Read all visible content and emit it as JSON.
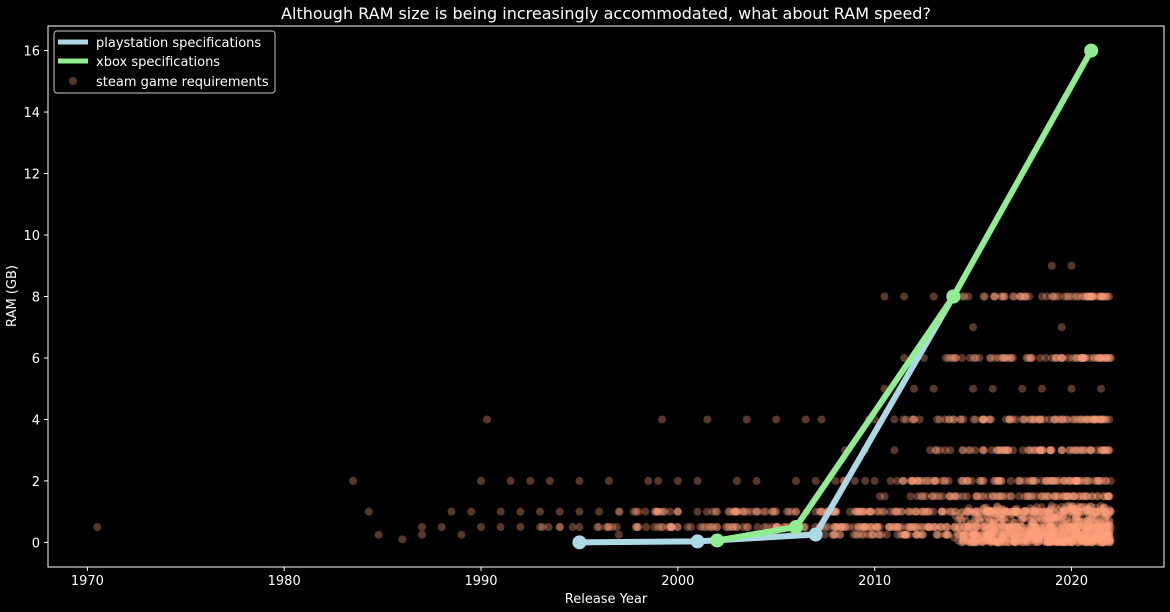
{
  "chart_data": {
    "type": "scatter",
    "title": "Although RAM size is being increasingly accommodated, what about RAM speed?",
    "xlabel": "Release Year",
    "ylabel": "RAM (GB)",
    "xlim": [
      1968,
      2024.7
    ],
    "ylim": [
      -0.8,
      16.8
    ],
    "xticks": [
      1970,
      1980,
      1990,
      2000,
      2010,
      2020
    ],
    "yticks": [
      0,
      2,
      4,
      6,
      8,
      10,
      12,
      14,
      16
    ],
    "grid": false,
    "legend_position": "top-left",
    "colors": {
      "background": "#000000",
      "axes": "#ffffff",
      "playstation": "#add8e6",
      "xbox": "#90ee90",
      "steam": "#ffa07a"
    },
    "series": [
      {
        "name": "playstation specifications",
        "kind": "line",
        "x": [
          1995,
          2001,
          2007,
          2014
        ],
        "y": [
          0.002,
          0.032,
          0.256,
          8
        ]
      },
      {
        "name": "xbox specifications",
        "kind": "line",
        "x": [
          2002,
          2006,
          2014,
          2021
        ],
        "y": [
          0.064,
          0.5,
          8,
          16
        ]
      },
      {
        "name": "steam game requirements",
        "kind": "scatter",
        "alpha": 0.35,
        "sample_points": [
          [
            1970.5,
            0.5
          ],
          [
            1983.5,
            2
          ],
          [
            1984.3,
            1
          ],
          [
            1984.8,
            0.25
          ],
          [
            1986.0,
            0.1
          ],
          [
            1987.0,
            0.25
          ],
          [
            1987.0,
            0.5
          ],
          [
            1988.0,
            0.5
          ],
          [
            1988.5,
            1
          ],
          [
            1989.0,
            0.25
          ],
          [
            1989.5,
            1
          ],
          [
            1990.0,
            0.5
          ],
          [
            1990.0,
            2
          ],
          [
            1990.3,
            4
          ],
          [
            1991.0,
            0.5
          ],
          [
            1991.0,
            1
          ],
          [
            1991.5,
            2
          ],
          [
            1992.0,
            0.5
          ],
          [
            1992.0,
            1
          ],
          [
            1992.5,
            2
          ],
          [
            1993.0,
            0.5
          ],
          [
            1993.0,
            1
          ],
          [
            1993.5,
            2
          ],
          [
            1994.0,
            0.5
          ],
          [
            1994.0,
            1
          ],
          [
            1995.0,
            0.5
          ],
          [
            1995.0,
            1
          ],
          [
            1995.0,
            2
          ],
          [
            1996.0,
            0.5
          ],
          [
            1996.0,
            1
          ],
          [
            1996.5,
            2
          ],
          [
            1997.0,
            0.25
          ],
          [
            1997.0,
            1
          ],
          [
            1998.0,
            0.5
          ],
          [
            1998.0,
            1
          ],
          [
            1998.5,
            2
          ],
          [
            1999.0,
            0.5
          ],
          [
            1999.0,
            1
          ],
          [
            1999.0,
            2
          ],
          [
            1999.2,
            4
          ],
          [
            2000.0,
            0.5
          ],
          [
            2000.0,
            1
          ],
          [
            2000.0,
            2
          ],
          [
            2001.0,
            1
          ],
          [
            2001.0,
            2
          ],
          [
            2001.5,
            4
          ],
          [
            2002.0,
            0.5
          ],
          [
            2002.0,
            1
          ],
          [
            2003.0,
            0.5
          ],
          [
            2003.0,
            2
          ],
          [
            2003.5,
            4
          ],
          [
            2004.0,
            1
          ],
          [
            2004.0,
            2
          ],
          [
            2005.0,
            0.5
          ],
          [
            2005.0,
            1
          ],
          [
            2005.0,
            4
          ],
          [
            2006.0,
            1
          ],
          [
            2006.0,
            2
          ],
          [
            2006.5,
            4
          ],
          [
            2007.0,
            1
          ],
          [
            2007.0,
            2
          ],
          [
            2007.3,
            4
          ],
          [
            2008.0,
            0.5
          ],
          [
            2008.0,
            1
          ],
          [
            2008.0,
            2
          ],
          [
            2008.5,
            3
          ],
          [
            2009.0,
            2
          ],
          [
            2009.5,
            3
          ],
          [
            2009.7,
            4
          ],
          [
            2010.0,
            2
          ],
          [
            2010.0,
            4
          ],
          [
            2010.5,
            5
          ],
          [
            2010.5,
            8
          ],
          [
            2011.0,
            3
          ],
          [
            2011.0,
            4
          ],
          [
            2011.5,
            6
          ],
          [
            2011.5,
            8
          ],
          [
            2012.0,
            4
          ],
          [
            2012.0,
            5
          ],
          [
            2012.5,
            6
          ],
          [
            2013.0,
            5
          ],
          [
            2013.0,
            8
          ],
          [
            2014.0,
            4
          ],
          [
            2014.0,
            6
          ],
          [
            2015.0,
            5
          ],
          [
            2015.0,
            7
          ],
          [
            2016.0,
            5
          ],
          [
            2016.5,
            6
          ],
          [
            2017.0,
            4
          ],
          [
            2017.5,
            5
          ],
          [
            2018.0,
            6
          ],
          [
            2018.5,
            5
          ],
          [
            2019.0,
            3
          ],
          [
            2019.0,
            9
          ],
          [
            2019.5,
            7
          ],
          [
            2020.0,
            9
          ],
          [
            2020.0,
            5
          ],
          [
            2020.5,
            4
          ],
          [
            2021.0,
            3
          ],
          [
            2021.5,
            5
          ],
          [
            2022.0,
            6
          ],
          [
            2022.0,
            2
          ],
          [
            2022.0,
            1
          ],
          [
            2022.0,
            0.5
          ]
        ],
        "dense_bands": [
          {
            "y": 0.25,
            "x_from": 2004,
            "x_to": 2022
          },
          {
            "y": 0.5,
            "x_from": 1993,
            "x_to": 2022
          },
          {
            "y": 1,
            "x_from": 1997,
            "x_to": 2022
          },
          {
            "y": 1.5,
            "x_from": 2010,
            "x_to": 2022
          },
          {
            "y": 2,
            "x_from": 2008,
            "x_to": 2022
          },
          {
            "y": 3,
            "x_from": 2012,
            "x_to": 2022
          },
          {
            "y": 4,
            "x_from": 2011,
            "x_to": 2022
          },
          {
            "y": 6,
            "x_from": 2013,
            "x_to": 2022
          },
          {
            "y": 8,
            "x_from": 2014,
            "x_to": 2022
          }
        ],
        "dense_cloud": {
          "x_from": 2014,
          "x_to": 2022,
          "y_from": 0,
          "y_to": 1.2
        }
      }
    ]
  }
}
